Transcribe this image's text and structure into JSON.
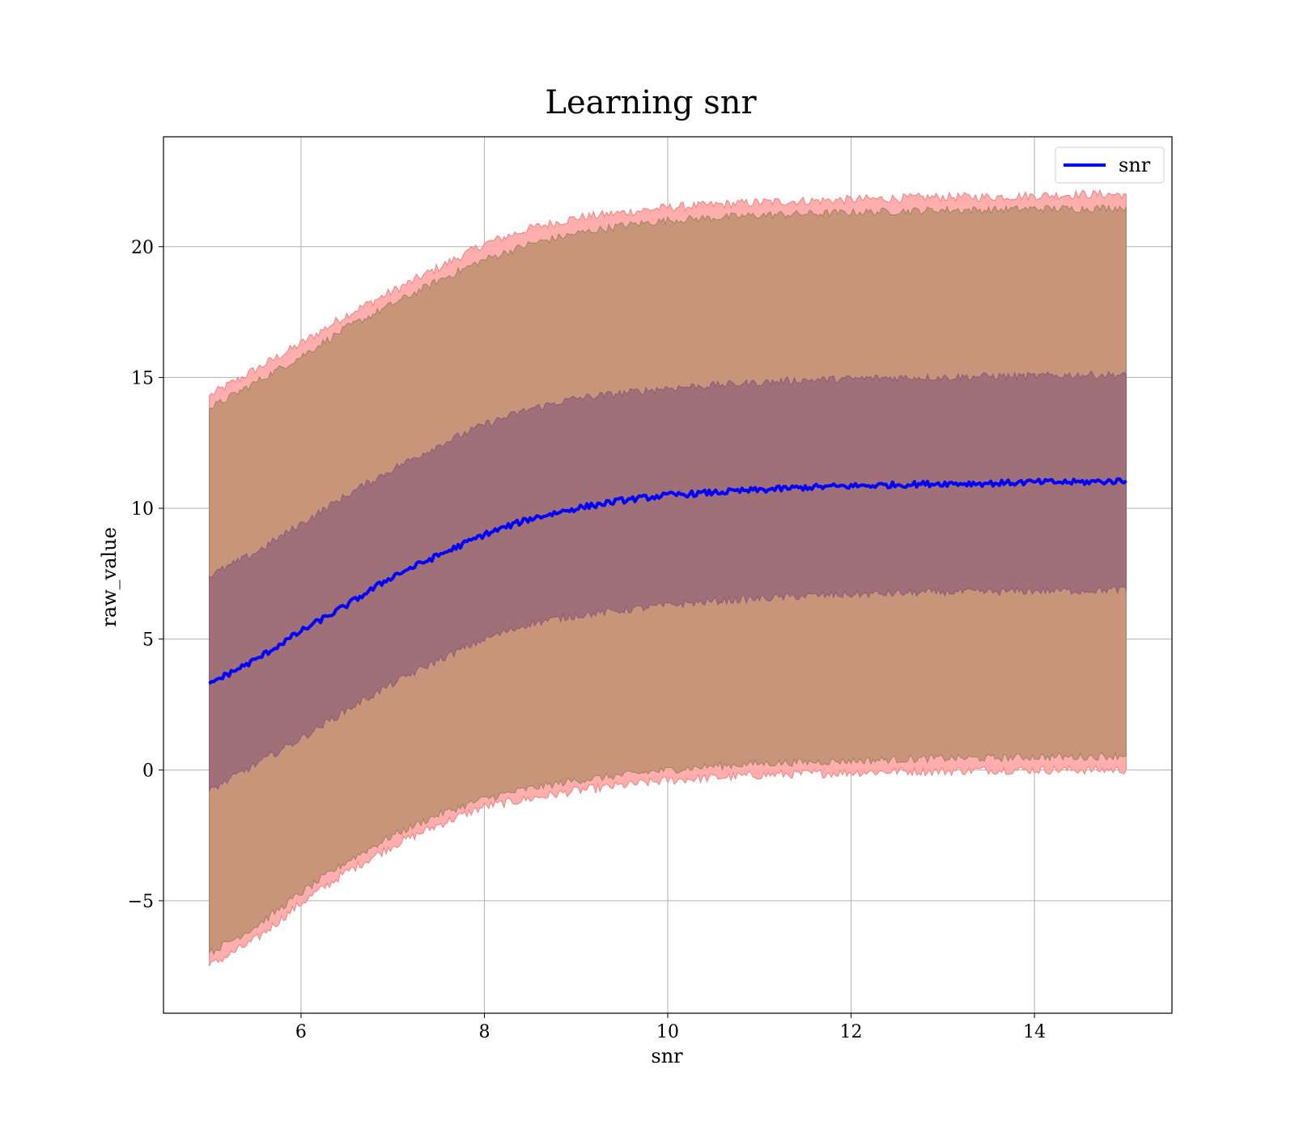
{
  "chart_data": {
    "type": "area",
    "title": "Learning snr",
    "xlabel": "snr",
    "ylabel": "raw_value",
    "xlim": [
      4.5,
      15.5
    ],
    "ylim": [
      -9.3,
      24.2
    ],
    "xticks": [
      6,
      8,
      10,
      12,
      14
    ],
    "yticks": [
      -5,
      0,
      5,
      10,
      15,
      20
    ],
    "xtick_labels": [
      "6",
      "8",
      "10",
      "12",
      "14"
    ],
    "ytick_labels": [
      "−5",
      "0",
      "5",
      "10",
      "15",
      "20"
    ],
    "grid": true,
    "legend": {
      "position": "top-right",
      "entries": [
        "snr"
      ]
    },
    "colors": {
      "line": "#0000ff",
      "outer_band": "#ffaaaa",
      "outer_band_edge": "#f08080",
      "middle_band": "#c8957a",
      "middle_band_edge": "#a08060",
      "inner_band": "#a07078",
      "inner_band_edge": "#8a5a78"
    },
    "x": [
      5,
      5.5,
      6,
      6.5,
      7,
      7.5,
      8,
      8.5,
      9,
      9.5,
      10,
      10.5,
      11,
      11.5,
      12,
      12.5,
      13,
      13.5,
      14,
      14.5,
      15
    ],
    "series": [
      {
        "name": "snr",
        "values": [
          3.3,
          4.2,
          5.3,
          6.3,
          7.4,
          8.2,
          9.0,
          9.6,
          10.0,
          10.3,
          10.5,
          10.6,
          10.7,
          10.8,
          10.85,
          10.9,
          10.95,
          10.95,
          11.0,
          11.0,
          11.05
        ]
      }
    ],
    "bands": [
      {
        "role": "outer",
        "lower": [
          -7.5,
          -6.5,
          -5.1,
          -3.9,
          -2.9,
          -2.1,
          -1.4,
          -1.1,
          -0.8,
          -0.6,
          -0.4,
          -0.3,
          -0.2,
          -0.15,
          -0.1,
          -0.05,
          -0.05,
          0.0,
          0.0,
          0.0,
          0.0
        ],
        "upper": [
          14.3,
          15.3,
          16.3,
          17.4,
          18.3,
          19.2,
          20.1,
          20.7,
          21.1,
          21.3,
          21.5,
          21.6,
          21.7,
          21.75,
          21.8,
          21.85,
          21.9,
          21.9,
          21.95,
          22.0,
          22.0
        ]
      },
      {
        "role": "middle",
        "lower": [
          -7.0,
          -6.0,
          -4.7,
          -3.5,
          -2.5,
          -1.7,
          -1.1,
          -0.7,
          -0.4,
          -0.2,
          0.0,
          0.15,
          0.25,
          0.3,
          0.35,
          0.4,
          0.45,
          0.45,
          0.5,
          0.5,
          0.55
        ],
        "upper": [
          13.8,
          14.8,
          15.8,
          16.9,
          17.8,
          18.7,
          19.5,
          20.1,
          20.5,
          20.8,
          21.0,
          21.1,
          21.2,
          21.25,
          21.3,
          21.35,
          21.4,
          21.4,
          21.45,
          21.45,
          21.5
        ]
      },
      {
        "role": "inner",
        "lower": [
          -0.8,
          0.2,
          1.2,
          2.3,
          3.3,
          4.2,
          5.0,
          5.6,
          5.9,
          6.1,
          6.3,
          6.45,
          6.55,
          6.65,
          6.7,
          6.75,
          6.8,
          6.8,
          6.85,
          6.85,
          6.9
        ],
        "upper": [
          7.4,
          8.3,
          9.4,
          10.5,
          11.5,
          12.4,
          13.2,
          13.8,
          14.2,
          14.4,
          14.6,
          14.7,
          14.8,
          14.9,
          14.95,
          15.0,
          15.0,
          15.05,
          15.05,
          15.1,
          15.1
        ]
      }
    ]
  }
}
